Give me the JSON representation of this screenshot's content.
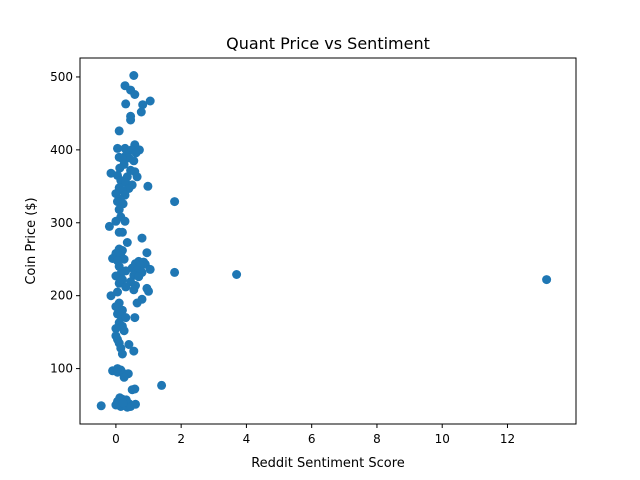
{
  "chart_data": {
    "type": "scatter",
    "title": "Quant Price vs Sentiment",
    "xlabel": "Reddit Sentiment Score",
    "ylabel": "Coin Price ($)",
    "xlim": [
      -1.1,
      14.1
    ],
    "ylim": [
      24,
      526
    ],
    "x_ticks": [
      0,
      2,
      4,
      6,
      8,
      10,
      12
    ],
    "y_ticks": [
      100,
      200,
      300,
      400,
      500
    ],
    "grid": false,
    "legend": "none",
    "marker_color": "#1f77b4",
    "series": [
      {
        "points": [
          [
            0.55,
            502
          ],
          [
            0.28,
            488
          ],
          [
            0.45,
            482
          ],
          [
            0.58,
            476
          ],
          [
            1.05,
            467
          ],
          [
            0.3,
            463
          ],
          [
            0.82,
            462
          ],
          [
            0.78,
            452
          ],
          [
            0.45,
            446
          ],
          [
            0.45,
            441
          ],
          [
            0.1,
            426
          ],
          [
            0.58,
            407
          ],
          [
            0.05,
            402
          ],
          [
            0.28,
            402
          ],
          [
            0.48,
            400
          ],
          [
            0.72,
            400
          ],
          [
            0.62,
            396
          ],
          [
            0.32,
            393
          ],
          [
            0.1,
            390
          ],
          [
            0.4,
            389
          ],
          [
            0.2,
            388
          ],
          [
            0.55,
            385
          ],
          [
            0.25,
            380
          ],
          [
            0.12,
            375
          ],
          [
            0.45,
            372
          ],
          [
            0.58,
            370
          ],
          [
            -0.15,
            368
          ],
          [
            0.05,
            365
          ],
          [
            0.35,
            363
          ],
          [
            0.65,
            363
          ],
          [
            0.15,
            358
          ],
          [
            0.3,
            355
          ],
          [
            0.5,
            352
          ],
          [
            0.98,
            350
          ],
          [
            0.1,
            348
          ],
          [
            0.4,
            347
          ],
          [
            0.2,
            344
          ],
          [
            0.0,
            340
          ],
          [
            0.28,
            338
          ],
          [
            0.12,
            332
          ],
          [
            0.05,
            329
          ],
          [
            0.22,
            326
          ],
          [
            0.1,
            318
          ],
          [
            1.8,
            329
          ],
          [
            0.15,
            308
          ],
          [
            0.0,
            302
          ],
          [
            0.28,
            302
          ],
          [
            -0.2,
            295
          ],
          [
            0.1,
            287
          ],
          [
            0.2,
            287
          ],
          [
            0.8,
            279
          ],
          [
            0.35,
            273
          ],
          [
            0.1,
            264
          ],
          [
            0.2,
            262
          ],
          [
            0.0,
            258
          ],
          [
            0.15,
            255
          ],
          [
            -0.1,
            251
          ],
          [
            0.95,
            259
          ],
          [
            0.25,
            250
          ],
          [
            0.05,
            248
          ],
          [
            0.7,
            247
          ],
          [
            0.85,
            246
          ],
          [
            0.6,
            244
          ],
          [
            0.9,
            243
          ],
          [
            0.75,
            241
          ],
          [
            0.1,
            240
          ],
          [
            0.5,
            238
          ],
          [
            1.05,
            236
          ],
          [
            0.65,
            235
          ],
          [
            0.3,
            234
          ],
          [
            0.8,
            232
          ],
          [
            1.8,
            232
          ],
          [
            0.15,
            230
          ],
          [
            0.0,
            227
          ],
          [
            0.55,
            228
          ],
          [
            0.7,
            226
          ],
          [
            0.2,
            222
          ],
          [
            0.45,
            219
          ],
          [
            0.1,
            217
          ],
          [
            0.6,
            214
          ],
          [
            0.3,
            212
          ],
          [
            0.95,
            210
          ],
          [
            0.55,
            208
          ],
          [
            1.0,
            206
          ],
          [
            0.05,
            205
          ],
          [
            -0.15,
            200
          ],
          [
            0.8,
            195
          ],
          [
            0.65,
            190
          ],
          [
            0.1,
            190
          ],
          [
            0.0,
            185
          ],
          [
            0.2,
            180
          ],
          [
            0.05,
            175
          ],
          [
            0.15,
            172
          ],
          [
            0.3,
            170
          ],
          [
            0.58,
            170
          ],
          [
            0.1,
            163
          ],
          [
            0.2,
            158
          ],
          [
            0.0,
            155
          ],
          [
            0.25,
            152
          ],
          [
            0.0,
            145
          ],
          [
            0.05,
            140
          ],
          [
            0.1,
            135
          ],
          [
            0.4,
            133
          ],
          [
            0.15,
            128
          ],
          [
            0.55,
            124
          ],
          [
            0.2,
            120
          ],
          [
            -0.1,
            97
          ],
          [
            0.05,
            100
          ],
          [
            0.15,
            98
          ],
          [
            0.05,
            95
          ],
          [
            0.25,
            93
          ],
          [
            0.38,
            93
          ],
          [
            0.25,
            88
          ],
          [
            1.4,
            77
          ],
          [
            0.5,
            71
          ],
          [
            0.58,
            72
          ],
          [
            3.7,
            229
          ],
          [
            13.2,
            222
          ],
          [
            -0.45,
            49
          ],
          [
            0.0,
            50
          ],
          [
            0.05,
            55
          ],
          [
            0.1,
            52
          ],
          [
            0.15,
            48
          ],
          [
            0.2,
            56
          ],
          [
            0.25,
            50
          ],
          [
            0.3,
            54
          ],
          [
            0.35,
            47
          ],
          [
            0.4,
            52
          ],
          [
            0.45,
            48
          ],
          [
            0.2,
            58
          ],
          [
            0.12,
            60
          ],
          [
            0.32,
            57
          ],
          [
            0.6,
            51
          ],
          [
            0.22,
            53
          ]
        ]
      }
    ]
  }
}
